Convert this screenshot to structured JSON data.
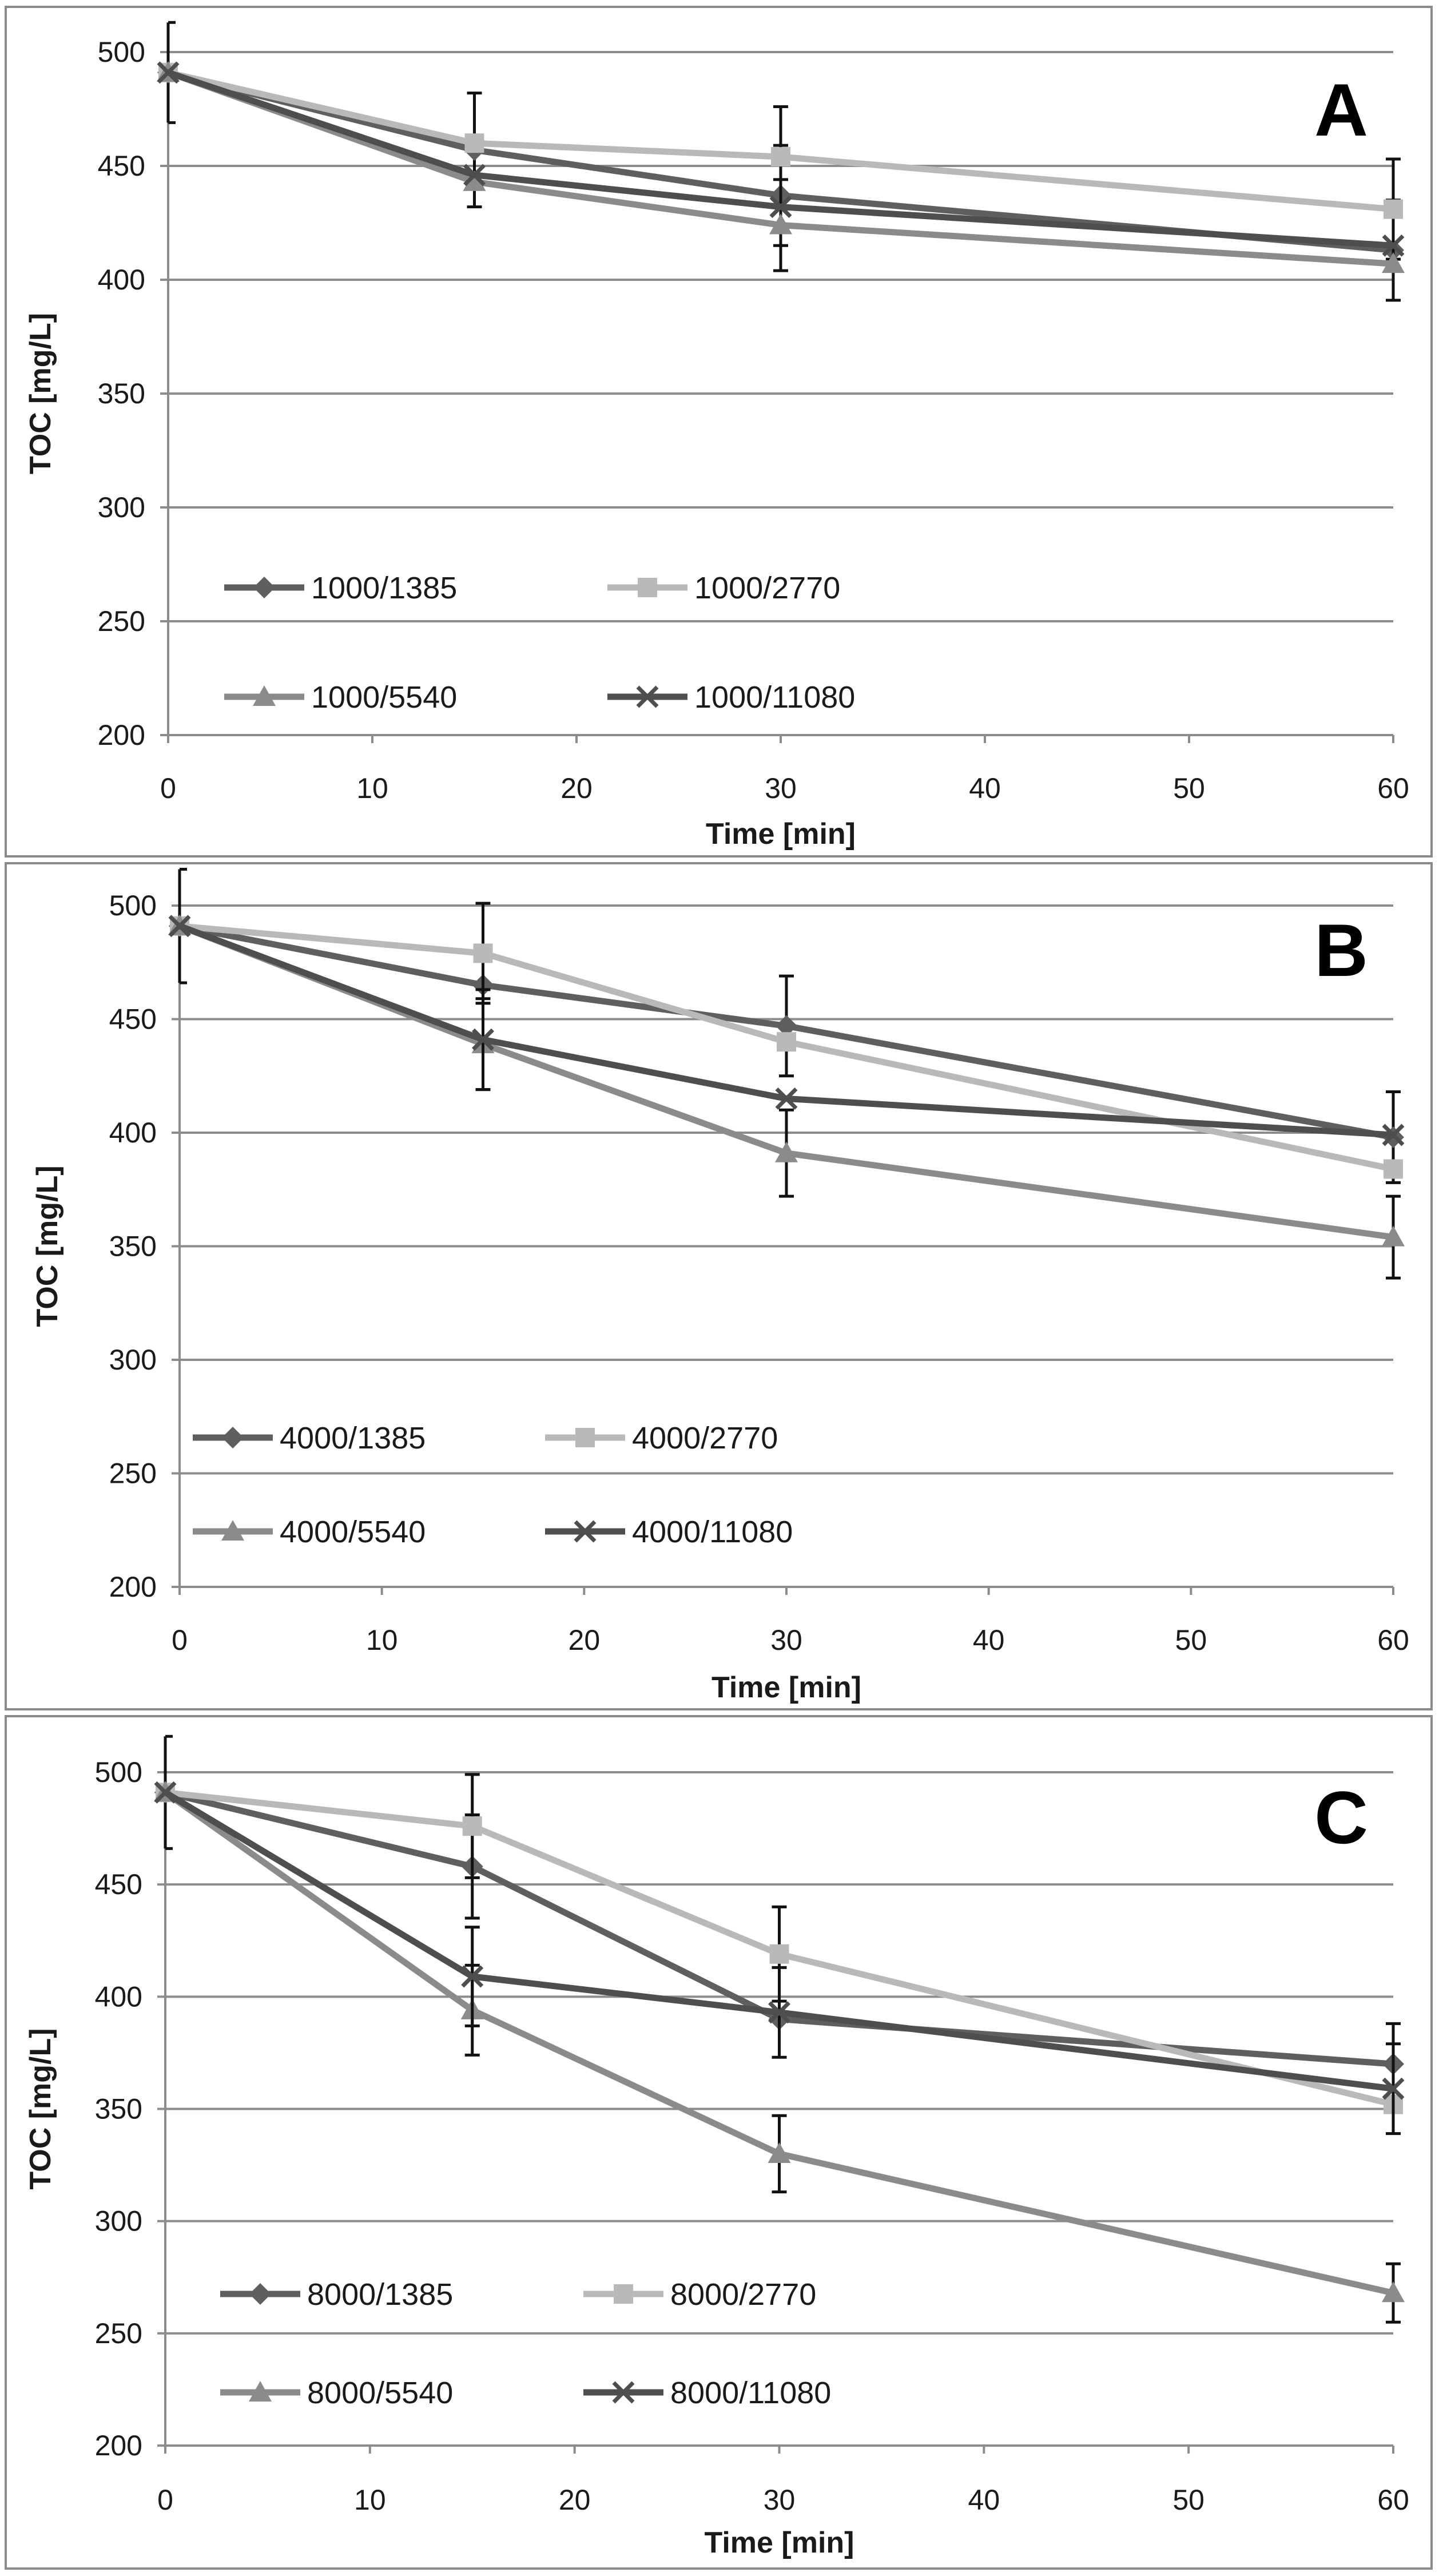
{
  "colors": {
    "s1385": "#5f5f5f",
    "s2770": "#b9b9b9",
    "s5540": "#8b8b8b",
    "s11080": "#4e4e4e"
  },
  "chart_data": [
    {
      "type": "line",
      "panel": "A",
      "xlabel": "Time [min]",
      "ylabel": "TOC [mg/L]",
      "xlim": [
        0,
        60
      ],
      "ylim": [
        200,
        500
      ],
      "xticks": [
        0,
        10,
        20,
        30,
        40,
        50,
        60
      ],
      "yticks": [
        200,
        250,
        300,
        350,
        400,
        450,
        500
      ],
      "x": [
        0,
        15,
        30,
        60
      ],
      "series": [
        {
          "name": "1000/1385",
          "marker": "diamond",
          "color_key": "s1385",
          "values": [
            491,
            457,
            437,
            413
          ],
          "errors": [
            22,
            25,
            22,
            22
          ]
        },
        {
          "name": "1000/2770",
          "marker": "square",
          "color_key": "s2770",
          "values": [
            491,
            460,
            454,
            431
          ],
          "errors": [
            0,
            0,
            22,
            22
          ]
        },
        {
          "name": "1000/5540",
          "marker": "triangle",
          "color_key": "s5540",
          "values": [
            491,
            443,
            424,
            407
          ],
          "errors": [
            0,
            0,
            20,
            0
          ]
        },
        {
          "name": "1000/11080",
          "marker": "x",
          "color_key": "s11080",
          "values": [
            491,
            446,
            432,
            415
          ],
          "errors": [
            0,
            0,
            0,
            0
          ]
        }
      ]
    },
    {
      "type": "line",
      "panel": "B",
      "xlabel": "Time [min]",
      "ylabel": "TOC [mg/L]",
      "xlim": [
        0,
        60
      ],
      "ylim": [
        200,
        500
      ],
      "xticks": [
        0,
        10,
        20,
        30,
        40,
        50,
        60
      ],
      "yticks": [
        200,
        250,
        300,
        350,
        400,
        450,
        500
      ],
      "x": [
        0,
        15,
        30,
        60
      ],
      "series": [
        {
          "name": "4000/1385",
          "marker": "diamond",
          "color_key": "s1385",
          "values": [
            491,
            465,
            447,
            398
          ],
          "errors": [
            25,
            0,
            22,
            20
          ]
        },
        {
          "name": "4000/2770",
          "marker": "square",
          "color_key": "s2770",
          "values": [
            491,
            479,
            440,
            384
          ],
          "errors": [
            0,
            22,
            0,
            0
          ]
        },
        {
          "name": "4000/5540",
          "marker": "triangle",
          "color_key": "s5540",
          "values": [
            491,
            439,
            391,
            354
          ],
          "errors": [
            0,
            20,
            19,
            18
          ]
        },
        {
          "name": "4000/11080",
          "marker": "x",
          "color_key": "s11080",
          "values": [
            491,
            441,
            415,
            399
          ],
          "errors": [
            0,
            22,
            0,
            0
          ]
        }
      ]
    },
    {
      "type": "line",
      "panel": "C",
      "xlabel": "Time [min]",
      "ylabel": "TOC [mg/L]",
      "xlim": [
        0,
        60
      ],
      "ylim": [
        200,
        500
      ],
      "xticks": [
        0,
        10,
        20,
        30,
        40,
        50,
        60
      ],
      "yticks": [
        200,
        250,
        300,
        350,
        400,
        450,
        500
      ],
      "x": [
        0,
        15,
        30,
        60
      ],
      "series": [
        {
          "name": "8000/1385",
          "marker": "diamond",
          "color_key": "s1385",
          "values": [
            491,
            458,
            390,
            370
          ],
          "errors": [
            25,
            23,
            0,
            18
          ]
        },
        {
          "name": "8000/2770",
          "marker": "square",
          "color_key": "s2770",
          "values": [
            491,
            476,
            419,
            352
          ],
          "errors": [
            0,
            23,
            21,
            0
          ]
        },
        {
          "name": "8000/5540",
          "marker": "triangle",
          "color_key": "s5540",
          "values": [
            491,
            394,
            330,
            268
          ],
          "errors": [
            0,
            20,
            17,
            13
          ]
        },
        {
          "name": "8000/11080",
          "marker": "x",
          "color_key": "s11080",
          "values": [
            491,
            409,
            393,
            359
          ],
          "errors": [
            0,
            22,
            20,
            20
          ]
        }
      ]
    }
  ]
}
